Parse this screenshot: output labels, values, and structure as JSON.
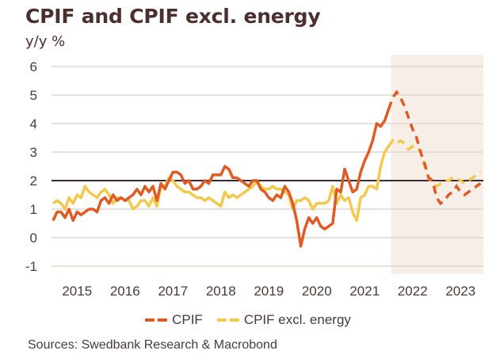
{
  "header": {
    "title": "CPIF and CPIF excl. energy",
    "subtitle": "y/y %"
  },
  "source": "Sources: Swedbank Research & Macrobond",
  "colors": {
    "cpif": "#e05a24",
    "cpif_excl_energy": "#f2c94c",
    "forecast_shade": "#f7eee7",
    "reference_line": "#3d2b2b",
    "grid": "#e2d6d2"
  },
  "chart_data": {
    "type": "line",
    "title": "CPIF and CPIF excl. energy",
    "ylabel": "y/y %",
    "xlabel": "",
    "ylim": [
      -1,
      6
    ],
    "yticks": [
      -1,
      0,
      1,
      2,
      3,
      4,
      5,
      6
    ],
    "xticks": [
      "2015",
      "2016",
      "2017",
      "2018",
      "2019",
      "2020",
      "2021",
      "2022",
      "2023"
    ],
    "xrange": [
      "2015-01",
      "2023-12"
    ],
    "reference_line": 2,
    "forecast_start": "2022-01",
    "grid": true,
    "legend_position": "bottom",
    "series": [
      {
        "name": "CPIF",
        "style": "solid-then-dashed",
        "start": "2015-01",
        "frequency": "monthly",
        "values": [
          0.6,
          0.9,
          0.9,
          0.7,
          1.0,
          0.6,
          0.9,
          0.8,
          0.9,
          1.0,
          1.0,
          0.9,
          1.3,
          1.4,
          1.2,
          1.5,
          1.3,
          1.4,
          1.3,
          1.4,
          1.5,
          1.7,
          1.5,
          1.8,
          1.6,
          1.8,
          1.3,
          1.9,
          1.7,
          2.0,
          2.3,
          2.3,
          2.2,
          1.9,
          2.0,
          1.7,
          1.7,
          1.8,
          2.0,
          1.9,
          2.2,
          2.2,
          2.2,
          2.5,
          2.4,
          2.1,
          2.1,
          2.0,
          1.9,
          1.8,
          2.0,
          2.0,
          1.7,
          1.6,
          1.4,
          1.3,
          1.5,
          1.4,
          1.8,
          1.6,
          1.2,
          0.6,
          -0.3,
          0.3,
          0.7,
          0.5,
          0.7,
          0.4,
          0.3,
          0.4,
          0.5,
          1.7,
          1.6,
          2.4,
          2.0,
          1.6,
          1.7,
          2.3,
          2.7,
          3.0,
          3.4,
          4.0,
          3.9,
          4.1,
          4.5,
          4.9,
          5.1,
          4.9,
          4.6,
          4.2,
          3.8,
          3.5,
          3.0,
          2.6,
          2.1,
          2.0,
          1.4,
          1.2,
          1.3,
          1.5,
          1.6,
          1.8,
          1.6,
          1.5,
          1.6,
          1.7,
          1.8,
          1.9
        ]
      },
      {
        "name": "CPIF excl. energy",
        "style": "solid-then-dashed",
        "start": "2015-01",
        "frequency": "monthly",
        "values": [
          1.2,
          1.3,
          1.2,
          1.0,
          1.4,
          1.2,
          1.5,
          1.4,
          1.8,
          1.6,
          1.5,
          1.4,
          1.6,
          1.7,
          1.5,
          1.2,
          1.4,
          1.4,
          1.3,
          1.3,
          1.0,
          1.1,
          1.3,
          1.3,
          1.1,
          1.4,
          1.1,
          1.8,
          1.8,
          2.1,
          2.0,
          1.8,
          1.7,
          1.6,
          1.6,
          1.5,
          1.4,
          1.4,
          1.3,
          1.4,
          1.3,
          1.2,
          1.1,
          1.6,
          1.4,
          1.5,
          1.4,
          1.5,
          1.6,
          1.7,
          1.8,
          2.0,
          1.8,
          1.7,
          1.7,
          1.8,
          1.7,
          1.7,
          1.6,
          1.5,
          1.0,
          1.3,
          1.3,
          1.4,
          1.3,
          1.0,
          1.2,
          1.2,
          1.2,
          1.3,
          1.8,
          1.2,
          1.5,
          1.3,
          1.4,
          0.9,
          0.6,
          1.4,
          1.5,
          1.8,
          1.8,
          1.7,
          2.5,
          3.0,
          3.2,
          3.4,
          3.3,
          3.4,
          3.3,
          3.1,
          3.2,
          3.2,
          3.0,
          2.5,
          2.1,
          1.9,
          1.8,
          1.9,
          2.0,
          2.0,
          2.1,
          2.1,
          2.0,
          1.9,
          2.0,
          2.1,
          2.2,
          2.3
        ]
      }
    ]
  }
}
